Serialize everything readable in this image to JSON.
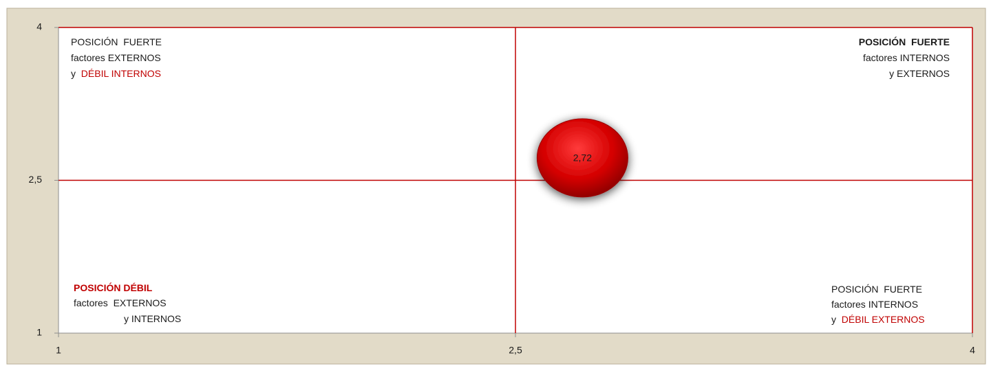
{
  "chart_data": {
    "type": "bubble",
    "x": [
      2.72
    ],
    "y": [
      2.72
    ],
    "value_labels": [
      "2,72"
    ],
    "color": "#d40000",
    "xlim": [
      1,
      4
    ],
    "ylim": [
      1,
      4
    ],
    "xticks": [
      1,
      {
        "value": 2.5,
        "label": "2,5"
      },
      4
    ],
    "yticks": [
      1,
      {
        "value": 2.5,
        "label": "2,5"
      },
      4
    ],
    "quadrant_lines": {
      "x": 2.5,
      "y": 2.5,
      "color": "#c00000"
    },
    "annotations": [
      {
        "lines": [
          [
            {
              "text": "POSICIÓN  FUERTE"
            }
          ],
          [
            {
              "text": "factores EXTERNOS"
            }
          ],
          [
            {
              "text": "y  "
            },
            {
              "text": "DÉBIL INTERNOS",
              "color": "#c00000"
            }
          ]
        ]
      },
      {
        "lines": [
          [
            {
              "text": "POSICIÓN  FUERTE",
              "bold": true
            }
          ],
          [
            {
              "text": "factores INTERNOS"
            }
          ],
          [
            {
              "text": "y EXTERNOS"
            }
          ]
        ]
      },
      {
        "lines": [
          [
            {
              "text": "POSICIÓN DÉBIL",
              "bold": true,
              "color": "#c00000"
            }
          ],
          [
            {
              "text": "factores  EXTERNOS"
            }
          ],
          [
            {
              "text": "y INTERNOS"
            }
          ]
        ]
      },
      {
        "lines": [
          [
            {
              "text": "POSICIÓN  FUERTE"
            }
          ],
          [
            {
              "text": "factores INTERNOS"
            }
          ],
          [
            {
              "text": "y  "
            },
            {
              "text": "DÉBIL EXTERNOS",
              "color": "#c00000"
            }
          ]
        ]
      }
    ]
  }
}
